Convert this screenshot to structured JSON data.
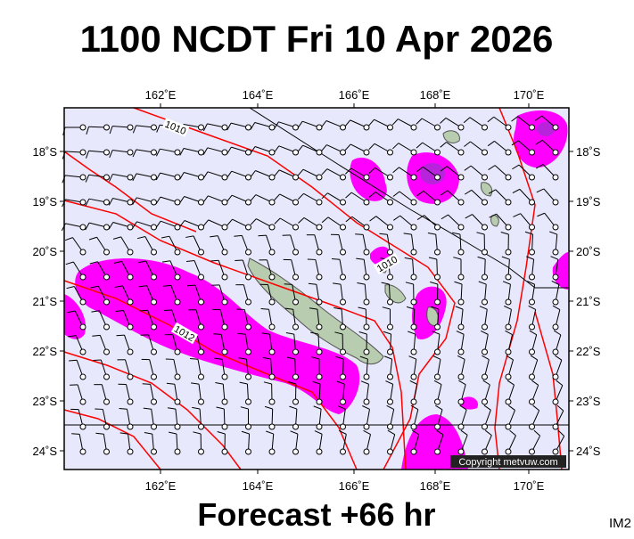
{
  "header": {
    "title": "1100 NCDT Fri 10 Apr 2026"
  },
  "axes": {
    "lon_labels": [
      "162˚E",
      "164˚E",
      "166˚E",
      "168˚E",
      "170˚E"
    ],
    "lat_labels": [
      "18˚S",
      "19˚S",
      "20˚S",
      "21˚S",
      "22˚S",
      "23˚S",
      "24˚S"
    ]
  },
  "contour_labels": [
    "1010",
    "1010",
    "1012"
  ],
  "copyright": "Copyright metvuw.com",
  "footer": {
    "forecast": "Forecast +66 hr",
    "code": "IM2"
  }
}
